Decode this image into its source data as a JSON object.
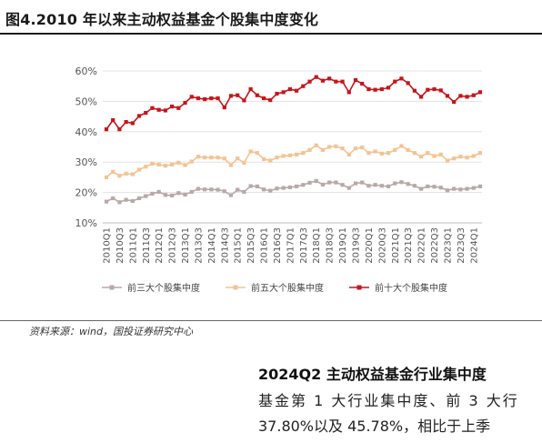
{
  "figure": {
    "title": "图4.2010 年以来主动权益基金个股集中度变化",
    "source": "资料来源：wind，国投证券研究中心"
  },
  "paragraph": {
    "heading": "2024Q2 主动权益基金行业集中度",
    "line1": "基金第 1 大行业集中度、前 3 大行",
    "line2": "37.80%以及 45.78%，相比于上季"
  },
  "colors": {
    "top3": "#b8a9a9",
    "top5": "#f3c392",
    "top10": "#c4161c",
    "grid": "#e3e3e3",
    "axis_text": "#555555"
  },
  "chart_data": {
    "type": "line",
    "title": "",
    "xlabel": "",
    "ylabel": "",
    "ylim": [
      0.1,
      0.6
    ],
    "yticks": [
      "10%",
      "20%",
      "30%",
      "40%",
      "50%",
      "60%"
    ],
    "grid": true,
    "legend": "bottom",
    "x": [
      "2010Q1",
      "2010Q2",
      "2010Q3",
      "2010Q4",
      "2011Q1",
      "2011Q2",
      "2011Q3",
      "2011Q4",
      "2012Q1",
      "2012Q2",
      "2012Q3",
      "2012Q4",
      "2013Q1",
      "2013Q2",
      "2013Q3",
      "2013Q4",
      "2014Q1",
      "2014Q2",
      "2014Q3",
      "2014Q4",
      "2015Q1",
      "2015Q2",
      "2015Q3",
      "2015Q4",
      "2016Q1",
      "2016Q2",
      "2016Q3",
      "2016Q4",
      "2017Q1",
      "2017Q2",
      "2017Q3",
      "2017Q4",
      "2018Q1",
      "2018Q2",
      "2018Q3",
      "2018Q4",
      "2019Q1",
      "2019Q2",
      "2019Q3",
      "2019Q4",
      "2020Q1",
      "2020Q2",
      "2020Q3",
      "2020Q4",
      "2021Q1",
      "2021Q2",
      "2021Q3",
      "2021Q4",
      "2022Q1",
      "2022Q2",
      "2022Q3",
      "2022Q4",
      "2023Q1",
      "2023Q2",
      "2023Q3",
      "2023Q4",
      "2024Q1",
      "2024Q2"
    ],
    "xtick_labels": [
      "2010Q1",
      "2010Q3",
      "2011Q1",
      "2011Q3",
      "2012Q1",
      "2012Q3",
      "2013Q1",
      "2013Q3",
      "2014Q1",
      "2014Q3",
      "2015Q1",
      "2015Q3",
      "2016Q1",
      "2016Q3",
      "2017Q1",
      "2017Q3",
      "2018Q1",
      "2018Q3",
      "2019Q1",
      "2019Q3",
      "2020Q1",
      "2020Q3",
      "2021Q1",
      "2021Q3",
      "2022Q1",
      "2022Q3",
      "2023Q1",
      "2023Q3",
      "2024Q1"
    ],
    "series": [
      {
        "name": "前三大个股集中度",
        "color_key": "top3",
        "values": [
          0.17,
          0.181,
          0.168,
          0.176,
          0.172,
          0.181,
          0.188,
          0.196,
          0.202,
          0.192,
          0.19,
          0.198,
          0.193,
          0.202,
          0.212,
          0.21,
          0.21,
          0.209,
          0.204,
          0.191,
          0.209,
          0.202,
          0.221,
          0.22,
          0.21,
          0.206,
          0.213,
          0.215,
          0.217,
          0.22,
          0.225,
          0.232,
          0.238,
          0.226,
          0.233,
          0.233,
          0.225,
          0.215,
          0.23,
          0.233,
          0.222,
          0.225,
          0.222,
          0.22,
          0.23,
          0.234,
          0.228,
          0.222,
          0.212,
          0.22,
          0.219,
          0.216,
          0.207,
          0.212,
          0.21,
          0.212,
          0.215,
          0.22
        ]
      },
      {
        "name": "前五大个股集中度",
        "color_key": "top5",
        "values": [
          0.25,
          0.268,
          0.255,
          0.262,
          0.26,
          0.275,
          0.285,
          0.295,
          0.292,
          0.288,
          0.292,
          0.298,
          0.29,
          0.302,
          0.318,
          0.315,
          0.315,
          0.315,
          0.312,
          0.29,
          0.312,
          0.298,
          0.335,
          0.33,
          0.31,
          0.305,
          0.315,
          0.32,
          0.322,
          0.325,
          0.33,
          0.34,
          0.355,
          0.34,
          0.35,
          0.352,
          0.345,
          0.325,
          0.345,
          0.348,
          0.33,
          0.335,
          0.328,
          0.33,
          0.34,
          0.353,
          0.34,
          0.33,
          0.318,
          0.33,
          0.32,
          0.325,
          0.305,
          0.312,
          0.318,
          0.315,
          0.32,
          0.33
        ]
      },
      {
        "name": "前十大个股集中度",
        "color_key": "top10",
        "values": [
          0.408,
          0.438,
          0.408,
          0.432,
          0.428,
          0.452,
          0.462,
          0.478,
          0.472,
          0.47,
          0.483,
          0.478,
          0.495,
          0.515,
          0.51,
          0.507,
          0.51,
          0.51,
          0.48,
          0.518,
          0.52,
          0.503,
          0.54,
          0.52,
          0.51,
          0.504,
          0.525,
          0.53,
          0.54,
          0.535,
          0.55,
          0.565,
          0.58,
          0.568,
          0.575,
          0.565,
          0.565,
          0.53,
          0.57,
          0.558,
          0.54,
          0.538,
          0.54,
          0.545,
          0.565,
          0.575,
          0.56,
          0.535,
          0.515,
          0.538,
          0.54,
          0.536,
          0.518,
          0.498,
          0.518,
          0.515,
          0.52,
          0.53
        ]
      }
    ]
  }
}
